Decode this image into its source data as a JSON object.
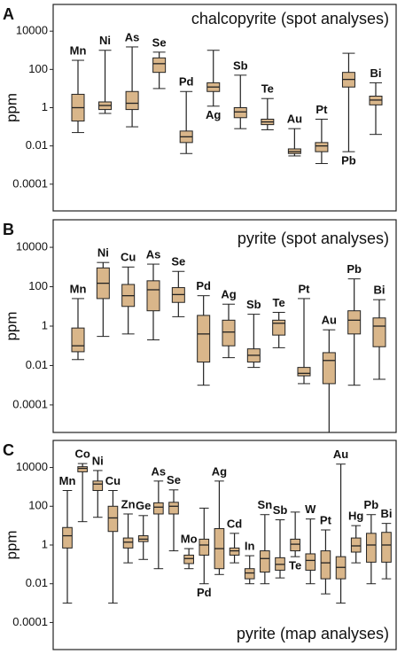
{
  "chart_data": [
    {
      "type": "box",
      "panel": "A",
      "title": "chalcopyrite (spot analyses)",
      "ylabel": "ppm",
      "log_scale": true,
      "ylim": [
        4e-06,
        250000
      ],
      "yticks": [
        10000,
        100,
        1,
        0.01,
        0.0001
      ],
      "color": "#d9b68a",
      "boxes": [
        {
          "name": "Mn",
          "min": 0.05,
          "q1": 0.2,
          "median": 1,
          "q3": 5,
          "max": 300
        },
        {
          "name": "Ni",
          "min": 0.5,
          "q1": 0.8,
          "median": 1.3,
          "q3": 2,
          "max": 1000
        },
        {
          "name": "As",
          "min": 0.1,
          "q1": 0.8,
          "median": 1.7,
          "q3": 7,
          "max": 1500
        },
        {
          "name": "Se",
          "min": 10,
          "q1": 70,
          "median": 200,
          "q3": 400,
          "max": 800
        },
        {
          "name": "Pd",
          "min": 0.004,
          "q1": 0.015,
          "median": 0.03,
          "q3": 0.06,
          "max": 7
        },
        {
          "name": "Ag",
          "min": 1.2,
          "q1": 7,
          "median": 12,
          "q3": 20,
          "max": 1000,
          "label_position": "below"
        },
        {
          "name": "Sb",
          "min": 0.08,
          "q1": 0.3,
          "median": 0.6,
          "q3": 1,
          "max": 50
        },
        {
          "name": "Te",
          "min": 0.07,
          "q1": 0.13,
          "median": 0.18,
          "q3": 0.25,
          "max": 3
        },
        {
          "name": "Au",
          "min": 0.003,
          "q1": 0.004,
          "median": 0.005,
          "q3": 0.007,
          "max": 0.08
        },
        {
          "name": "Pt",
          "min": 0.0012,
          "q1": 0.005,
          "median": 0.01,
          "q3": 0.015,
          "max": 0.25
        },
        {
          "name": "Pb",
          "min": 0.005,
          "q1": 12,
          "median": 30,
          "q3": 70,
          "max": 700,
          "label_position": "below"
        },
        {
          "name": "Bi",
          "min": 0.04,
          "q1": 1.4,
          "median": 2.5,
          "q3": 4,
          "max": 20
        }
      ]
    },
    {
      "type": "box",
      "panel": "B",
      "title": "pyrite (spot analyses)",
      "ylabel": "ppm",
      "log_scale": true,
      "ylim": [
        4e-06,
        250000
      ],
      "yticks": [
        10000,
        100,
        1,
        0.01,
        0.0001
      ],
      "color": "#d9b68a",
      "boxes": [
        {
          "name": "Mn",
          "min": 0.02,
          "q1": 0.05,
          "median": 0.1,
          "q3": 0.8,
          "max": 25
        },
        {
          "name": "Ni",
          "min": 0.3,
          "q1": 25,
          "median": 150,
          "q3": 900,
          "max": 1700
        },
        {
          "name": "Cu",
          "min": 0.4,
          "q1": 10,
          "median": 35,
          "q3": 130,
          "max": 1000
        },
        {
          "name": "As",
          "min": 0.2,
          "q1": 6,
          "median": 70,
          "q3": 200,
          "max": 1400
        },
        {
          "name": "Se",
          "min": 3,
          "q1": 16,
          "median": 40,
          "q3": 90,
          "max": 600
        },
        {
          "name": "Pd",
          "min": 0.001,
          "q1": 0.015,
          "median": 0.4,
          "q3": 3.5,
          "max": 35
        },
        {
          "name": "Ag",
          "min": 0.025,
          "q1": 0.1,
          "median": 0.5,
          "q3": 2,
          "max": 13
        },
        {
          "name": "Sb",
          "min": 0.008,
          "q1": 0.015,
          "median": 0.033,
          "q3": 0.07,
          "max": 4
        },
        {
          "name": "Te",
          "min": 0.08,
          "q1": 0.35,
          "median": 1.4,
          "q3": 2,
          "max": 5
        },
        {
          "name": "Pt",
          "min": 0.0012,
          "q1": 0.003,
          "median": 0.004,
          "q3": 0.008,
          "max": 25
        },
        {
          "name": "Au",
          "min": 4e-06,
          "q1": 0.0012,
          "median": 0.018,
          "q3": 0.045,
          "max": 0.65
        },
        {
          "name": "Pb",
          "min": 0.001,
          "q1": 0.4,
          "median": 2,
          "q3": 6,
          "max": 250
        },
        {
          "name": "Bi",
          "min": 0.002,
          "q1": 0.09,
          "median": 1,
          "q3": 2.6,
          "max": 22
        }
      ]
    },
    {
      "type": "box",
      "panel": "C",
      "title": "pyrite (map analyses)",
      "ylabel": "ppm",
      "log_scale": true,
      "ylim": [
        4e-06,
        250000
      ],
      "yticks": [
        10000,
        100,
        1,
        0.01,
        0.0001
      ],
      "color": "#d9b68a",
      "boxes": [
        {
          "name": "Mn",
          "min": 0.001,
          "q1": 0.7,
          "median": 3,
          "q3": 8,
          "max": 650
        },
        {
          "name": "Co",
          "min": 16,
          "q1": 6000,
          "median": 9000,
          "q3": 11000,
          "max": 16000
        },
        {
          "name": "Ni",
          "min": 27,
          "q1": 650,
          "median": 1400,
          "q3": 2000,
          "max": 7000
        },
        {
          "name": "Cu",
          "min": 0.001,
          "q1": 5,
          "median": 25,
          "q3": 100,
          "max": 650
        },
        {
          "name": "Zn",
          "min": 0.12,
          "q1": 0.7,
          "median": 1.4,
          "q3": 2.3,
          "max": 40
        },
        {
          "name": "Ge",
          "min": 0.18,
          "q1": 1.5,
          "median": 2,
          "q3": 3,
          "max": 33
        },
        {
          "name": "As",
          "min": 0.06,
          "q1": 40,
          "median": 90,
          "q3": 150,
          "max": 2000
        },
        {
          "name": "Se",
          "min": 0.5,
          "q1": 40,
          "median": 100,
          "q3": 160,
          "max": 700
        },
        {
          "name": "Mo",
          "min": 0.06,
          "q1": 0.11,
          "median": 0.2,
          "q3": 0.3,
          "max": 0.65
        },
        {
          "name": "Pd",
          "min": 0.01,
          "q1": 0.3,
          "median": 1,
          "q3": 2,
          "max": 80,
          "label_position": "below"
        },
        {
          "name": "Ag",
          "min": 0.03,
          "q1": 0.06,
          "median": 0.65,
          "q3": 7,
          "max": 2000
        },
        {
          "name": "Cd",
          "min": 0.12,
          "q1": 0.3,
          "median": 0.5,
          "q3": 0.7,
          "max": 4
        },
        {
          "name": "In",
          "min": 0.01,
          "q1": 0.018,
          "median": 0.036,
          "q3": 0.06,
          "max": 0.28
        },
        {
          "name": "Sn",
          "min": 0.01,
          "q1": 0.04,
          "median": 0.2,
          "q3": 0.5,
          "max": 37
        },
        {
          "name": "Sb",
          "min": 0.02,
          "q1": 0.05,
          "median": 0.1,
          "q3": 0.22,
          "max": 20
        },
        {
          "name": "Te",
          "min": 0.25,
          "q1": 0.5,
          "median": 1.1,
          "q3": 2,
          "max": 50,
          "label_position": "below"
        },
        {
          "name": "W",
          "min": 0.01,
          "q1": 0.05,
          "median": 0.16,
          "q3": 0.35,
          "max": 22
        },
        {
          "name": "Pt",
          "min": 0.003,
          "q1": 0.018,
          "median": 0.12,
          "q3": 0.5,
          "max": 6
        },
        {
          "name": "Au",
          "min": 0.001,
          "q1": 0.018,
          "median": 0.07,
          "q3": 0.25,
          "max": 15000
        },
        {
          "name": "Hg",
          "min": 0.12,
          "q1": 0.43,
          "median": 0.9,
          "q3": 2.3,
          "max": 10
        },
        {
          "name": "Pb",
          "min": 0.01,
          "q1": 0.13,
          "median": 1,
          "q3": 4,
          "max": 37
        },
        {
          "name": "Bi",
          "min": 0.018,
          "q1": 0.13,
          "median": 1,
          "q3": 4.5,
          "max": 13
        }
      ]
    }
  ]
}
